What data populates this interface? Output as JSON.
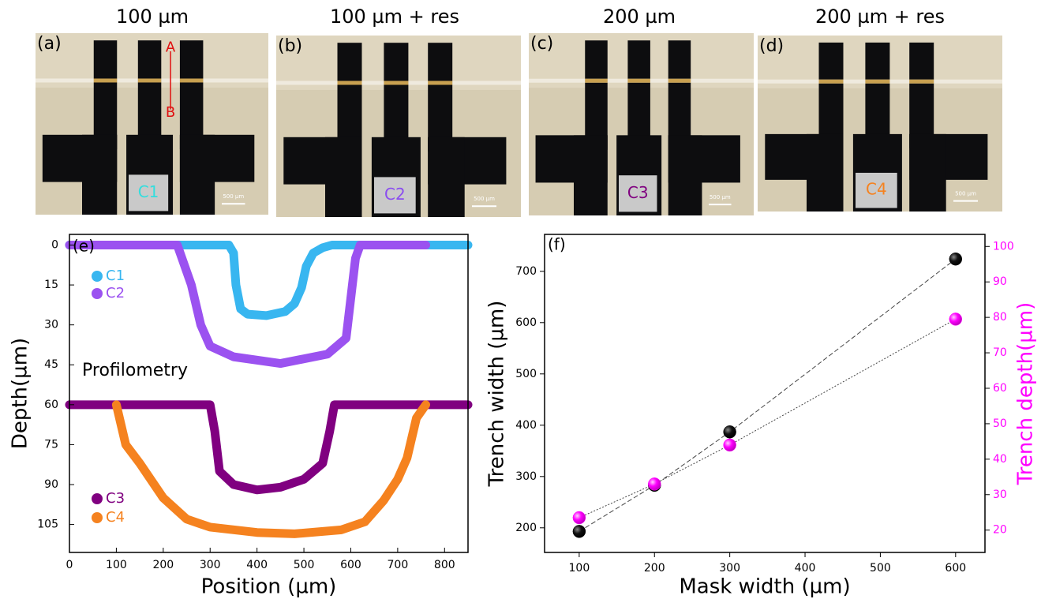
{
  "photos": [
    {
      "title": "100 µm",
      "label": "(a)",
      "chip": "C1",
      "chip_color": "#33dede",
      "markers": [
        "A",
        "B"
      ]
    },
    {
      "title": "100 µm + res",
      "label": "(b)",
      "chip": "C2",
      "chip_color": "#8a4cf0"
    },
    {
      "title": "200 µm",
      "label": "(c)",
      "chip": "C3",
      "chip_color": "#800080"
    },
    {
      "title": "200 µm + res",
      "label": "(d)",
      "chip": "C4",
      "chip_color": "#f5821f"
    }
  ],
  "scale_bar": "500 µm",
  "chart_data": [
    {
      "type": "line",
      "panel_label": "(e)",
      "annotation": "Profilometry",
      "x_label": "Position (µm)",
      "y_label": "Depth(µm)",
      "xlim": [
        0,
        850
      ],
      "ylim": [
        -4,
        115.5
      ],
      "y_inverted": true,
      "xticks": [
        0,
        100,
        200,
        300,
        400,
        500,
        600,
        700,
        800
      ],
      "yticks": [
        0,
        15,
        30,
        45,
        60,
        75,
        90,
        105
      ],
      "series": [
        {
          "name": "C1",
          "color": "#38b6f0",
          "x": [
            0,
            340,
            350,
            355,
            365,
            380,
            420,
            460,
            480,
            495,
            505,
            520,
            540,
            560,
            850
          ],
          "values": [
            0,
            0,
            3,
            15,
            24,
            26,
            26.5,
            25,
            22,
            16,
            8,
            3,
            1,
            0,
            0
          ]
        },
        {
          "name": "C2",
          "color": "#9b52f0",
          "x": [
            0,
            230,
            240,
            260,
            280,
            300,
            350,
            450,
            550,
            590,
            600,
            610,
            620,
            760
          ],
          "values": [
            0,
            0,
            5,
            15,
            30,
            38,
            42,
            44.5,
            41,
            35,
            20,
            5,
            0,
            0
          ]
        },
        {
          "name": "C3",
          "color": "#800080",
          "x": [
            0,
            300,
            310,
            320,
            350,
            400,
            450,
            500,
            540,
            555,
            565,
            850
          ],
          "values": [
            60,
            60,
            70,
            85,
            90,
            92,
            91,
            88,
            82,
            70,
            60,
            60
          ]
        },
        {
          "name": "C4",
          "color": "#f5821f",
          "x": [
            100,
            120,
            150,
            200,
            250,
            300,
            400,
            480,
            580,
            630,
            670,
            700,
            720,
            740,
            760
          ],
          "values": [
            60,
            75,
            82,
            95,
            103,
            106,
            108,
            108.5,
            107,
            104,
            96,
            88,
            80,
            65,
            60
          ]
        }
      ]
    },
    {
      "type": "scatter",
      "panel_label": "(f)",
      "x_label": "Mask width (µm)",
      "y_label": "Trench width (µm)",
      "y2_label": "Trench depth(µm)",
      "xlim": [
        54,
        639
      ],
      "ylim": [
        152,
        772
      ],
      "y2lim": [
        13.7,
        103.4
      ],
      "xticks": [
        100,
        200,
        300,
        400,
        500,
        600
      ],
      "yticks": [
        200,
        300,
        400,
        500,
        600,
        700
      ],
      "y2ticks": [
        20,
        30,
        40,
        50,
        60,
        70,
        80,
        90,
        100
      ],
      "y2_color": "#ff00ff",
      "series": [
        {
          "color": "#000000",
          "line_style": "dashed",
          "x": [
            100,
            200,
            300,
            600
          ],
          "values": [
            193,
            283,
            387,
            724
          ]
        },
        {
          "color": "#ff00ff",
          "line_style": "dotted",
          "axis": "y2",
          "x": [
            100,
            200,
            300,
            600
          ],
          "values": [
            23.5,
            33,
            44,
            79.5
          ]
        }
      ]
    }
  ]
}
